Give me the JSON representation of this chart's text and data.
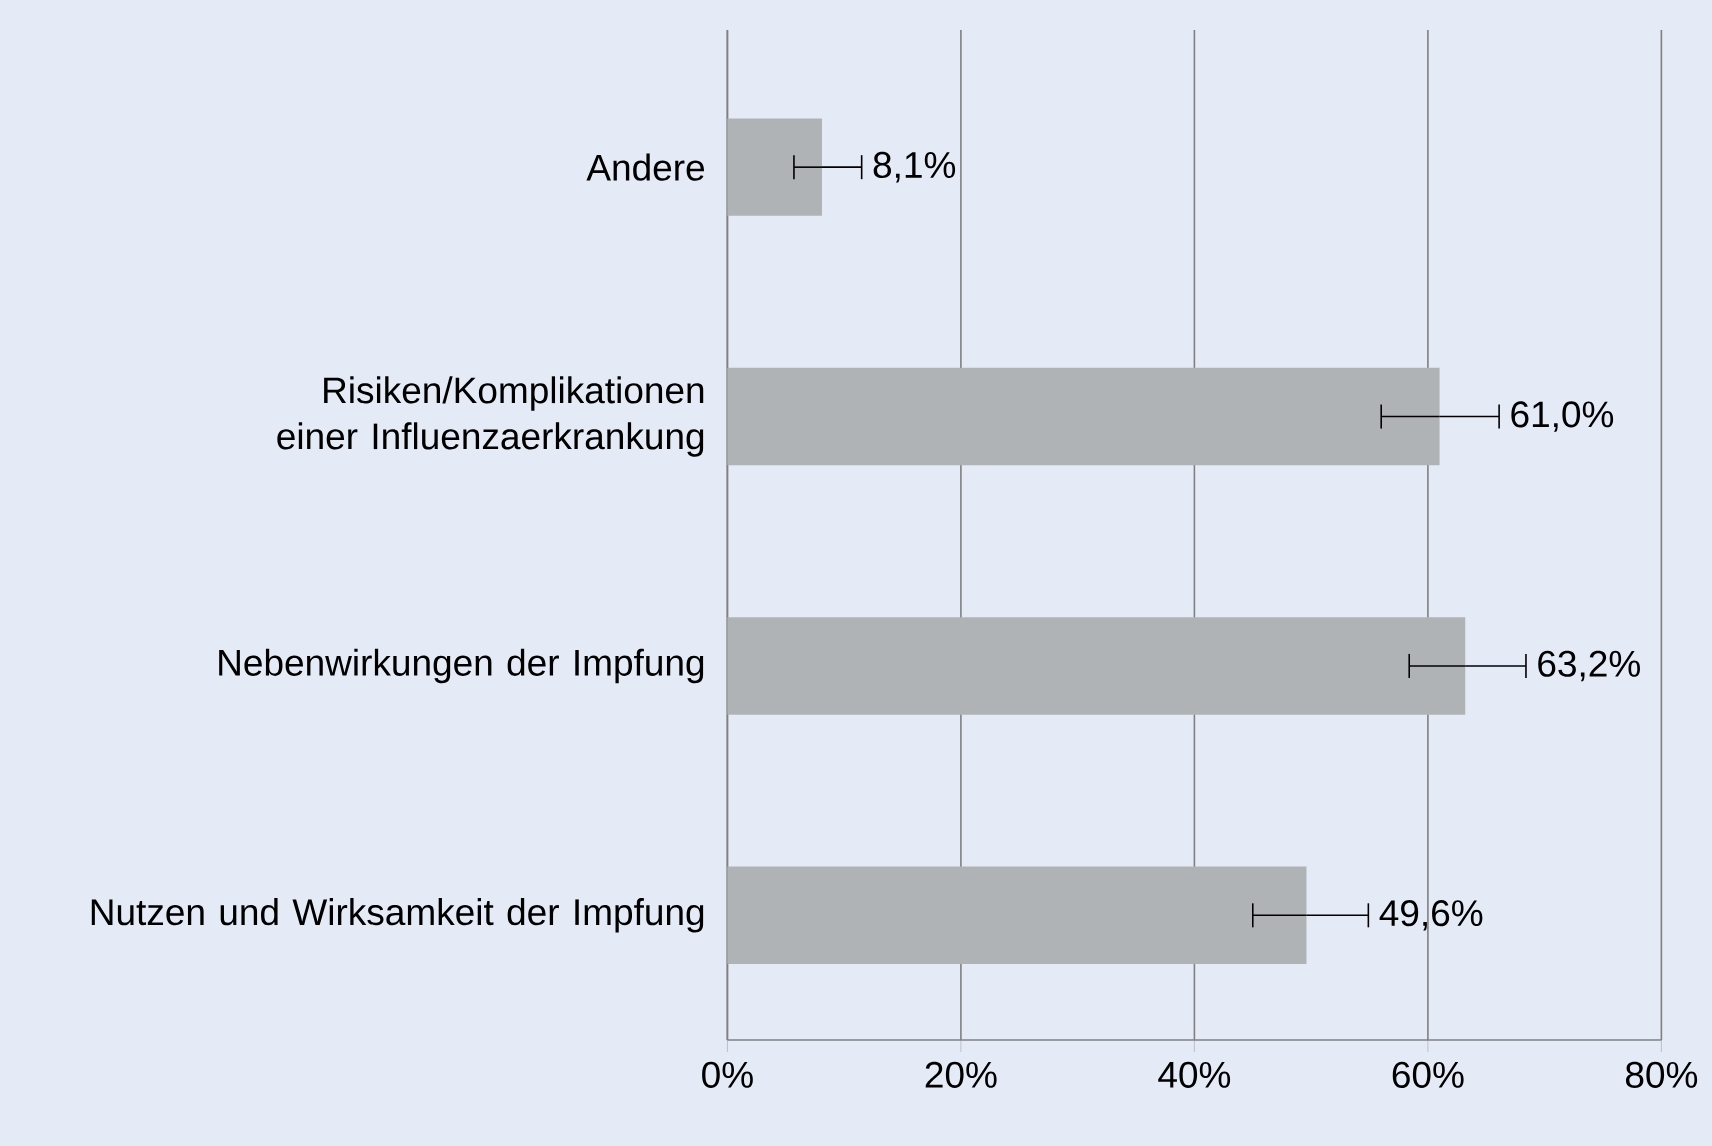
{
  "chart_data": {
    "type": "bar",
    "orientation": "horizontal",
    "categories": [
      "Andere",
      "Risiken/Komplikationen einer Influenzaerkrankung",
      "Nebenwirkungen der Impfung",
      "Nutzen und Wirksamkeit der Impfung"
    ],
    "values": [
      8.1,
      61.0,
      63.2,
      49.6
    ],
    "errors": [
      [
        5.7,
        11.5
      ],
      [
        56.0,
        66.1
      ],
      [
        58.4,
        68.4
      ],
      [
        45.0,
        54.9
      ]
    ],
    "value_labels": [
      "8,1%",
      "61,0%",
      "63,2%",
      "49,6%"
    ],
    "color": "#b0b3b6",
    "xlim": [
      0,
      80
    ],
    "xticks": [
      {
        "value": 0,
        "label": "0%"
      },
      {
        "value": 20,
        "label": "20%"
      },
      {
        "value": 40,
        "label": "40%"
      },
      {
        "value": 60,
        "label": "60%"
      },
      {
        "value": 80,
        "label": "80%"
      }
    ],
    "grid": "x"
  }
}
